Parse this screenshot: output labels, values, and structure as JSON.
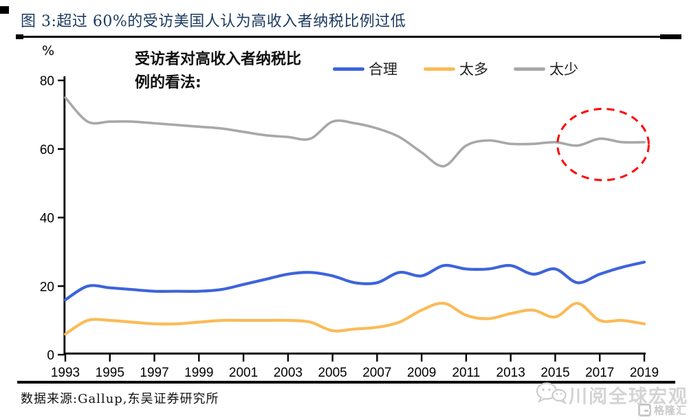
{
  "page": {
    "title": "图 3:超过 60%的受访美国人认为高收入者纳税比例过低",
    "source": "数据来源:Gallup,东吴证券研究所",
    "watermark_text": "川阅全球宏观",
    "watermark_icon": "wechat-bubbles-icon",
    "watermark_logo_text": "格隆汇",
    "title_color": "#1c3a5f"
  },
  "chart_data": {
    "type": "line",
    "annotation": {
      "line1": "受访者对高收入者纳税比",
      "line2": "例的看法:"
    },
    "ylabel": "%",
    "xlabel": "",
    "grid": false,
    "legend_position": "top",
    "ylim": [
      0,
      80
    ],
    "xlim": [
      1993,
      2019
    ],
    "yticks": [
      0,
      20,
      40,
      60,
      80
    ],
    "xticks": [
      1993,
      1995,
      1997,
      1999,
      2001,
      2003,
      2005,
      2007,
      2009,
      2011,
      2013,
      2015,
      2017,
      2019
    ],
    "x": [
      1993,
      1994,
      1995,
      1996,
      1997,
      1998,
      1999,
      2000,
      2001,
      2002,
      2003,
      2004,
      2005,
      2006,
      2007,
      2008,
      2009,
      2010,
      2011,
      2012,
      2013,
      2014,
      2015,
      2016,
      2017,
      2018,
      2019
    ],
    "series": [
      {
        "name": "合理",
        "color": "#3d64db",
        "stroke_width": 4.2,
        "values": [
          16,
          20,
          19.5,
          19,
          18.5,
          18.5,
          18.5,
          19,
          20.5,
          22,
          23.5,
          24,
          23,
          21,
          21,
          24,
          23,
          26,
          25,
          25,
          26,
          23.5,
          25,
          21,
          23.5,
          25.5,
          27
        ]
      },
      {
        "name": "太多",
        "color": "#fabb57",
        "stroke_width": 4.2,
        "values": [
          6,
          10,
          10,
          9.5,
          9,
          9,
          9.5,
          10,
          10,
          10,
          10,
          9.5,
          7,
          7.5,
          8,
          9.5,
          13,
          15,
          11.5,
          10.5,
          12,
          13,
          11,
          15,
          10,
          10,
          9
        ]
      },
      {
        "name": "太少",
        "color": "#a8a8a8",
        "stroke_width": 3.6,
        "values": [
          75,
          68,
          68,
          68,
          67.5,
          67,
          66.5,
          66,
          65,
          64,
          63.5,
          63,
          68,
          67.5,
          66,
          63.5,
          59,
          55,
          61,
          62.5,
          61.5,
          61.5,
          62,
          61,
          63,
          62,
          62
        ]
      }
    ],
    "annotation_ellipse": {
      "center_year": 2017.15,
      "center_value": 61.3,
      "radius_years": 2.05,
      "radius_value": 10.4,
      "color": "#ff0000",
      "style": "dashed"
    }
  }
}
